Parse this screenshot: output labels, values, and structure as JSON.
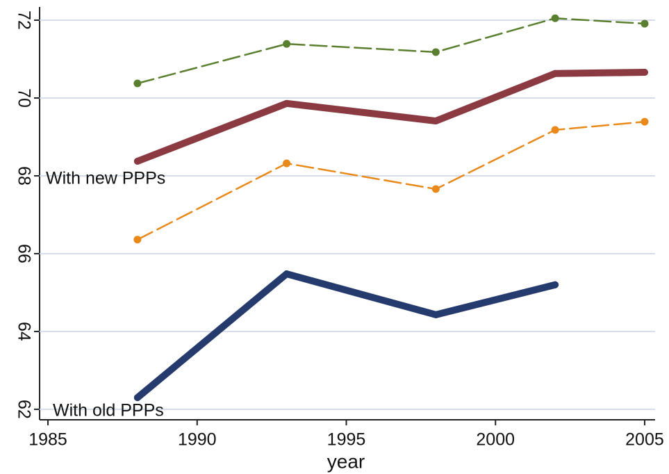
{
  "chart_data": {
    "type": "line",
    "x_label": "year",
    "x": [
      1988,
      1993,
      1998,
      2002,
      2005
    ],
    "xlim": [
      1984.72,
      2005.35
    ],
    "xticks": [
      1985,
      1990,
      1995,
      2000,
      2005
    ],
    "ylim": [
      61.73,
      72.34
    ],
    "yticks": [
      62,
      64,
      66,
      68,
      70,
      72
    ],
    "grid": true,
    "series": [
      {
        "color": "#5a7f2e",
        "style": "dashed",
        "values": [
          70.375,
          71.39,
          71.18,
          72.05,
          71.91
        ]
      },
      {
        "color": "#8b3a42",
        "style": "solid",
        "values": [
          68.375,
          69.86,
          69.41,
          70.63,
          70.66
        ]
      },
      {
        "color": "#e8891a",
        "style": "dashed",
        "values": [
          66.36,
          68.32,
          67.66,
          69.18,
          69.39
        ]
      },
      {
        "color": "#253a6d",
        "style": "solid",
        "values": [
          62.3,
          65.48,
          64.43,
          65.2,
          null
        ]
      }
    ],
    "annotations": [
      "With new PPPs",
      "With old PPPs"
    ]
  }
}
